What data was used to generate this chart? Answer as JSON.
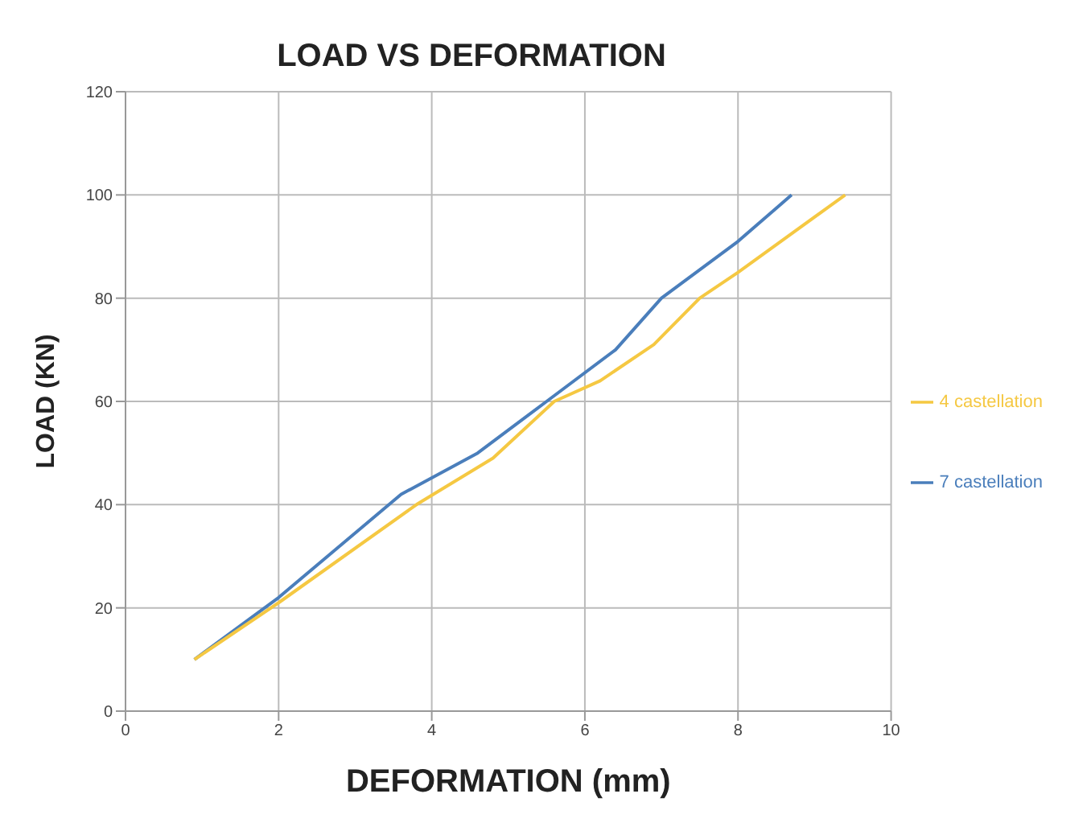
{
  "chart_data": {
    "type": "line",
    "title": "LOAD  VS DEFORMATION",
    "xlabel": "DEFORMATION (mm)",
    "ylabel": "LOAD (KN)",
    "xlim": [
      0,
      10
    ],
    "xticks": [
      0,
      2,
      4,
      6,
      8,
      10
    ],
    "ylim": [
      0,
      120
    ],
    "yticks": [
      0,
      20,
      40,
      60,
      80,
      100,
      120
    ],
    "grid": true,
    "legend": "right",
    "marker": "none",
    "series": [
      {
        "name": "7 castellation",
        "color": "#4a7ebb",
        "x": [
          0.9,
          2,
          3.6,
          4.6,
          5.5,
          6.4,
          7,
          8,
          8.7
        ],
        "values": [
          10,
          22,
          42,
          50,
          60,
          70,
          80,
          91,
          100
        ]
      },
      {
        "name": "4 castellation",
        "color": "#f5c842",
        "x": [
          0.9,
          2,
          3.8,
          4.8,
          5.6,
          6.2,
          6.9,
          7.5,
          8,
          9.4
        ],
        "values": [
          10,
          21,
          40,
          49,
          60,
          64,
          71,
          80,
          85,
          100
        ]
      }
    ]
  }
}
